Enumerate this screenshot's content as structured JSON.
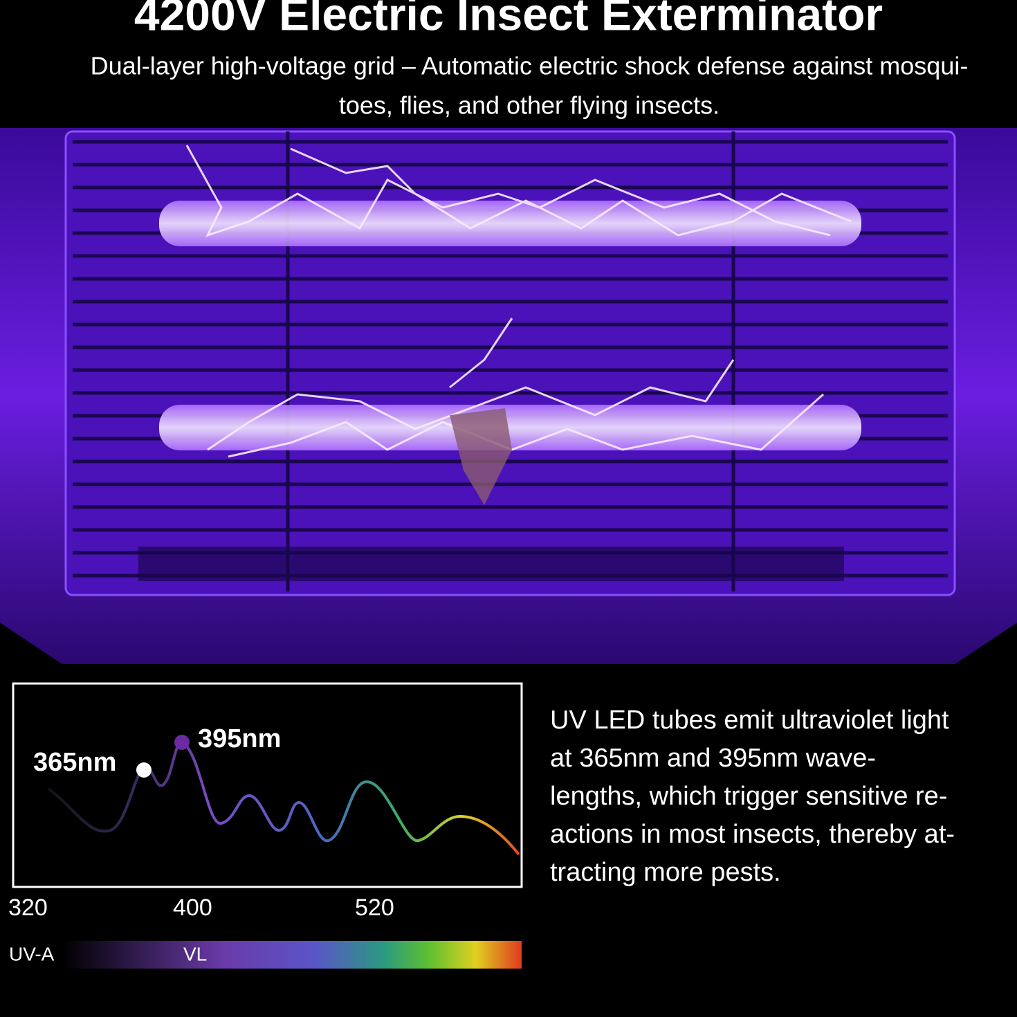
{
  "header": {
    "title": "4200V Electric Insect Exterminator",
    "subtitle_lines": [
      "Dual-layer high-voltage grid – Automatic electric shock defense against mosqui-",
      "toes, flies, and other flying insects."
    ]
  },
  "spectrum": {
    "peak_labels": [
      "365nm",
      "395nm"
    ],
    "scale_labels": [
      "320",
      "400",
      "520"
    ],
    "band_labels": [
      "UV-A",
      "VL"
    ]
  },
  "description": {
    "lines": [
      "UV LED tubes emit ultraviolet light",
      "at 365nm and 395nm wave-",
      "lengths, which trigger sensitive re-",
      "actions in most insects, thereby at-",
      "tracting more pests."
    ]
  }
}
